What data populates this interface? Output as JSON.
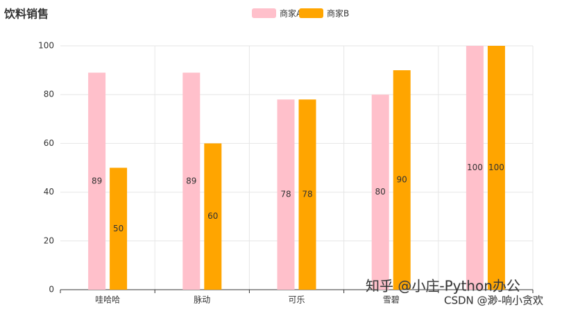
{
  "chart_data": {
    "type": "bar",
    "title": "饮料销售",
    "categories": [
      "哇哈哈",
      "脉动",
      "可乐",
      "雪碧",
      null
    ],
    "series": [
      {
        "name": "商家A",
        "color": "#ffc0cb",
        "values": [
          89,
          89,
          78,
          80,
          100
        ]
      },
      {
        "name": "商家B",
        "color": "#ffa500",
        "values": [
          50,
          60,
          78,
          90,
          100
        ]
      }
    ],
    "ylim": [
      0,
      100
    ],
    "yticks": [
      0,
      20,
      40,
      60,
      80,
      100
    ],
    "grid": true,
    "legend": "top",
    "watermarks": [
      "知乎 @小庄-Python办公",
      "CSDN @渺-响小贪欢"
    ]
  }
}
